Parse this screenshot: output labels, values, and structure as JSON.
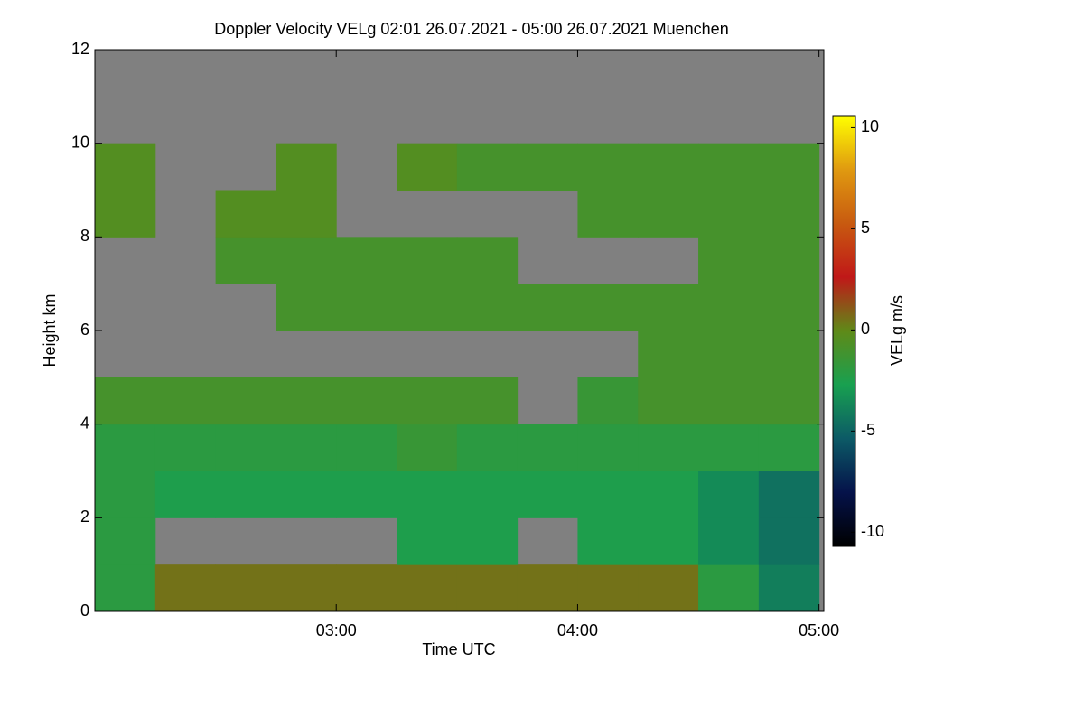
{
  "chart_data": {
    "type": "heatmap",
    "title": "Doppler Velocity VELg   02:01 26.07.2021 - 05:00 26.07.2021 Muenchen",
    "x_label": "Time UTC",
    "y_label": "Height km",
    "colorbar_label": "VELg m/s",
    "x": [
      2,
      2.25,
      2.5,
      2.75,
      3,
      3.25,
      3.5,
      3.75,
      4,
      4.25,
      4.5,
      4.75,
      5
    ],
    "y": [
      0,
      1,
      2,
      3,
      4,
      5,
      6,
      7,
      8,
      9,
      10,
      11,
      12
    ],
    "values": [
      [
        -2,
        0.5,
        0.5,
        0.5,
        0.5,
        0.5,
        0.5,
        0.5,
        0.5,
        0.5,
        -2,
        -4
      ],
      [
        -2,
        null,
        null,
        null,
        null,
        -2.5,
        -2.5,
        null,
        -2.5,
        -2.5,
        -3.5,
        -4.5
      ],
      [
        -2,
        -2.5,
        -2.5,
        -2.5,
        -2.5,
        -2.5,
        -2.5,
        -2.5,
        -2.5,
        -2.5,
        -3.5,
        -4.5
      ],
      [
        -2,
        -2,
        -2,
        -2,
        -2,
        -1.5,
        -2,
        -2,
        -2,
        -2,
        -2,
        -2
      ],
      [
        -1,
        -1,
        -1,
        -1,
        -1,
        -1,
        -1,
        null,
        -1.5,
        -1,
        -1,
        -1
      ],
      [
        null,
        null,
        null,
        null,
        null,
        null,
        null,
        null,
        null,
        -1,
        -1,
        -1
      ],
      [
        null,
        null,
        null,
        -1,
        -1,
        -1,
        -1,
        -1,
        -1,
        -1,
        -1,
        -1
      ],
      [
        null,
        null,
        -1,
        -1,
        -1,
        -1,
        -1,
        null,
        null,
        null,
        -1,
        -1
      ],
      [
        -0.5,
        null,
        -0.5,
        -0.5,
        null,
        null,
        null,
        null,
        -1,
        -1,
        -1,
        -1
      ],
      [
        -0.5,
        null,
        null,
        -0.5,
        null,
        -0.5,
        -1,
        -1,
        -1,
        -1,
        -1,
        -1
      ],
      [
        null,
        null,
        null,
        null,
        null,
        null,
        null,
        null,
        null,
        null,
        null,
        null
      ],
      [
        null,
        null,
        null,
        null,
        null,
        null,
        null,
        null,
        null,
        null,
        null,
        null
      ]
    ],
    "xlim": [
      2,
      5.02
    ],
    "xticks": [
      {
        "value": 3,
        "label": "03:00"
      },
      {
        "value": 4,
        "label": "04:00"
      },
      {
        "value": 5,
        "label": "05:00"
      }
    ],
    "ylim": [
      0,
      12
    ],
    "yticks": [
      0,
      2,
      4,
      6,
      8,
      10,
      12
    ],
    "clim": [
      -10.7,
      10.6
    ],
    "cticks": [
      -10,
      -5,
      0,
      5,
      10
    ],
    "colormap": [
      "#000000",
      "#05124a",
      "#0c5a66",
      "#18a050",
      "#5f8a18",
      "#c01818",
      "#c85a10",
      "#e09a10",
      "#ffff00"
    ],
    "missing_color": "#808080"
  }
}
